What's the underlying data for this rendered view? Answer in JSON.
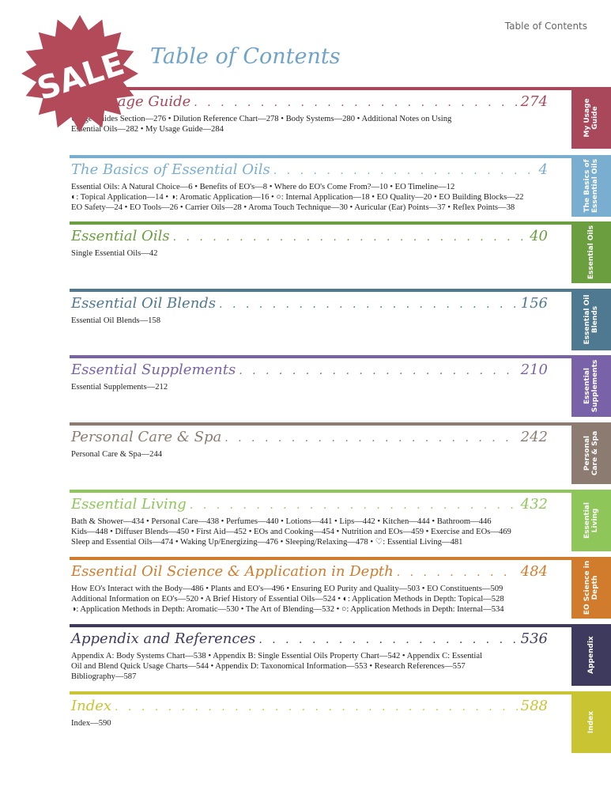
{
  "header": "Table of Contents",
  "title": "Table of Contents",
  "badge": "SALE",
  "badge_color": "#b24a5a",
  "sections": [
    {
      "title": "My Usage Guide",
      "page": "274",
      "tab": "My Usage Guide",
      "color": "#a8485a",
      "entries": [
        "Usage Guides Section—276  •  Dilution Reference Chart—278  •  Body Systems—280  •  Additional Notes on Using",
        "Essential Oils—282  •  My Usage Guide—284"
      ]
    },
    {
      "title": "The Basics of Essential Oils",
      "page": "4",
      "tab": "The Basics of Essential Oils",
      "color": "#7aaed0",
      "entries": [
        "Essential Oils: A Natural Choice—6  •  Benefits of EO's—8  •  Where do EO's Come From?—10  •  EO Timeline—12",
        "◐: Topical Application—14  •  ◑: Aromatic Application—16  •  ○: Internal Application—18  •  EO Quality—20  •  EO Building Blocks—22",
        "EO Safety—24  •  EO Tools—26  •  Carrier Oils—28  •  Aroma Touch Technique—30  •  Auricular (Ear) Points—37  •  Reflex Points—38"
      ]
    },
    {
      "title": "Essential Oils",
      "page": "40",
      "tab": "Essential Oils",
      "color": "#6a9e3e",
      "entries": [
        "Single Essential Oils—42"
      ]
    },
    {
      "title": "Essential Oil Blends",
      "page": "156",
      "tab": "Essential Oil Blends",
      "color": "#4f7891",
      "entries": [
        "Essential Oil Blends—158"
      ]
    },
    {
      "title": "Essential Supplements",
      "page": "210",
      "tab": "Essential Supplements",
      "color": "#7a62a8",
      "entries": [
        "Essential Supplements—212"
      ]
    },
    {
      "title": "Personal Care & Spa",
      "page": "242",
      "tab": "Personal Care & Spa",
      "color": "#8c7b70",
      "entries": [
        "Personal Care & Spa—244"
      ]
    },
    {
      "title": "Essential Living",
      "page": "432",
      "tab": "Essential Living",
      "color": "#8fc65a",
      "entries": [
        "Bath & Shower—434  •  Personal Care—438  •  Perfumes—440  •  Lotions—441  •  Lips—442  •  Kitchen—444  •  Bathroom—446",
        "Kids—448  •  Diffuser Blends—450  •  First Aid—452  •  EOs and Cooking—454  •  Nutrition and EOs—459  •  Exercise and EOs—469",
        "Sleep and Essential Oils—474  •  Waking Up/Energizing—476  •  Sleeping/Relaxing—478  •  ♡: Essential Living—481"
      ]
    },
    {
      "title": "Essential Oil Science & Application in Depth",
      "page": "484",
      "tab": "EO Science in Depth",
      "color": "#d07c2c",
      "entries": [
        "How EO's Interact with the Body—486  •  Plants and EO's—496  •  Ensuring EO Purity and Quality—503  •  EO Constituents—509",
        "Additional Information on EO's—520  •  A Brief History of Essential Oils—524  •  ◐: Application Methods in Depth: Topical—528",
        "◑: Application Methods in Depth: Aromatic—530  •  The Art of Blending—532  •  ○: Application Methods in Depth: Internal—534"
      ]
    },
    {
      "title": "Appendix and References",
      "page": "536",
      "tab": "Appendix",
      "color": "#3d3a5e",
      "entries": [
        "Appendix A: Body Systems Chart—538  •  Appendix B: Single Essential Oils Property Chart—542  •  Appendix C: Essential",
        "Oil and Blend Quick Usage Charts—544  •  Appendix D: Taxonomical Information—553  •  Research References—557",
        "Bibliography—587"
      ]
    },
    {
      "title": "Index",
      "page": "588",
      "tab": "Index",
      "color": "#c9c432",
      "entries": [
        "Index—590"
      ]
    }
  ]
}
